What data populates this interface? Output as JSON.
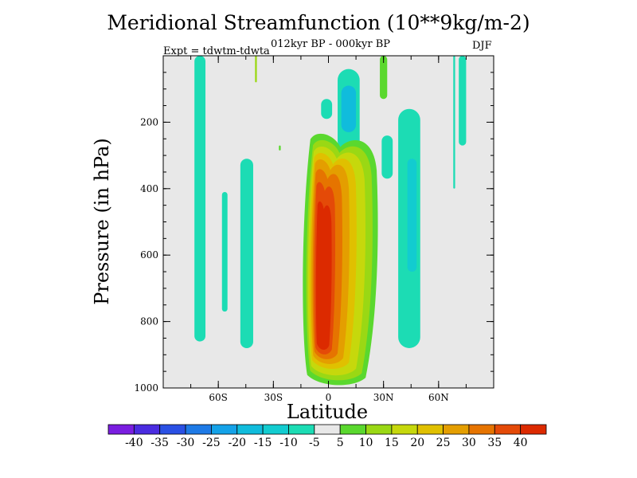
{
  "chart_data": {
    "type": "heatmap",
    "title": "Meridional Streamfunction (10**9kg/m-2)",
    "subtitle": "012kyr BP - 000kyr BP",
    "experiment_label": "Expt = tdwtm-tdwta",
    "season": "DJF",
    "xlabel": "Latitude",
    "ylabel": "Pressure (in hPa)",
    "xlim": [
      -90,
      90
    ],
    "ylim": [
      0,
      1000
    ],
    "y_inverted": true,
    "x_ticks": [
      {
        "value": -60,
        "label": "60S"
      },
      {
        "value": -30,
        "label": "30S"
      },
      {
        "value": 0,
        "label": "0"
      },
      {
        "value": 30,
        "label": "30N"
      },
      {
        "value": 60,
        "label": "60N"
      }
    ],
    "y_ticks": [
      {
        "value": 200,
        "label": "200"
      },
      {
        "value": 400,
        "label": "400"
      },
      {
        "value": 600,
        "label": "600"
      },
      {
        "value": 800,
        "label": "800"
      },
      {
        "value": 1000,
        "label": "1000"
      }
    ],
    "background_color": "#e8e8e8",
    "colorbar": {
      "levels": [
        -40,
        -35,
        -30,
        -25,
        -20,
        -15,
        -10,
        -5,
        5,
        10,
        15,
        20,
        25,
        30,
        35,
        40
      ],
      "labels": [
        "-40",
        "-35",
        "-30",
        "-25",
        "-20",
        "-15",
        "-10",
        "-5",
        "5",
        "10",
        "15",
        "20",
        "25",
        "30",
        "35",
        "40"
      ],
      "colors": [
        "#7a1ee0",
        "#4a2ce0",
        "#2a50e4",
        "#1e7ae6",
        "#14a2e8",
        "#10bcdc",
        "#12ccd0",
        "#1cdcb4",
        "#e8e8e8",
        "#5ad82e",
        "#9ad814",
        "#c6d80c",
        "#e0c000",
        "#e49e00",
        "#e67400",
        "#e44a08",
        "#dc2a00"
      ]
    },
    "regions": [
      {
        "level": 8,
        "lon": [
          -72,
          -68
        ],
        "p": [
          0,
          860
        ],
        "shape": "blob"
      },
      {
        "level": 7,
        "lon": [
          -73,
          -67
        ],
        "p": [
          0,
          860
        ],
        "shape": "blob"
      },
      {
        "level": 7,
        "lon": [
          -58,
          -55
        ],
        "p": [
          410,
          770
        ],
        "shape": "blob"
      },
      {
        "level": 7,
        "lon": [
          -48,
          -41
        ],
        "p": [
          310,
          880
        ],
        "shape": "blob"
      },
      {
        "level": 10,
        "lon": [
          -40,
          -39
        ],
        "p": [
          0,
          80
        ],
        "shape": "blob"
      },
      {
        "level": 9,
        "lon": [
          -27,
          -26
        ],
        "p": [
          270,
          285
        ],
        "shape": "blob"
      },
      {
        "level": 7,
        "lon": [
          -4,
          2
        ],
        "p": [
          130,
          190
        ],
        "shape": "blob"
      },
      {
        "level": 7,
        "lon": [
          5,
          17
        ],
        "p": [
          40,
          290
        ],
        "shape": "blob"
      },
      {
        "level": 5,
        "lon": [
          7,
          15
        ],
        "p": [
          90,
          230
        ],
        "shape": "blob"
      },
      {
        "level": 9,
        "lon": [
          28,
          32
        ],
        "p": [
          0,
          130
        ],
        "shape": "blob"
      },
      {
        "level": 7,
        "lon": [
          29,
          35
        ],
        "p": [
          240,
          370
        ],
        "shape": "blob"
      },
      {
        "level": 7,
        "lon": [
          38,
          50
        ],
        "p": [
          160,
          880
        ],
        "shape": "blob"
      },
      {
        "level": 6,
        "lon": [
          43,
          48
        ],
        "p": [
          310,
          650
        ],
        "shape": "blob"
      },
      {
        "level": 7,
        "lon": [
          68,
          69
        ],
        "p": [
          0,
          400
        ],
        "shape": "blob"
      },
      {
        "level": 7,
        "lon": [
          71,
          75
        ],
        "p": [
          0,
          270
        ],
        "shape": "blob"
      },
      {
        "level": 9,
        "lon": [
          -15,
          28
        ],
        "p": [
          220,
          1000
        ],
        "shape": "dipole"
      },
      {
        "level": 10,
        "lon": [
          -13,
          25
        ],
        "p": [
          240,
          985
        ],
        "shape": "dipole"
      },
      {
        "level": 11,
        "lon": [
          -12,
          21
        ],
        "p": [
          260,
          970
        ],
        "shape": "dipole"
      },
      {
        "level": 12,
        "lon": [
          -11,
          16
        ],
        "p": [
          280,
          950
        ],
        "shape": "dipole"
      },
      {
        "level": 13,
        "lon": [
          -10,
          12
        ],
        "p": [
          300,
          935
        ],
        "shape": "dipole"
      },
      {
        "level": 14,
        "lon": [
          -9,
          8
        ],
        "p": [
          330,
          920
        ],
        "shape": "dipole"
      },
      {
        "level": 15,
        "lon": [
          -8,
          4
        ],
        "p": [
          370,
          905
        ],
        "shape": "dipole"
      },
      {
        "level": 16,
        "lon": [
          -7,
          2
        ],
        "p": [
          430,
          890
        ],
        "shape": "dipole"
      }
    ]
  }
}
